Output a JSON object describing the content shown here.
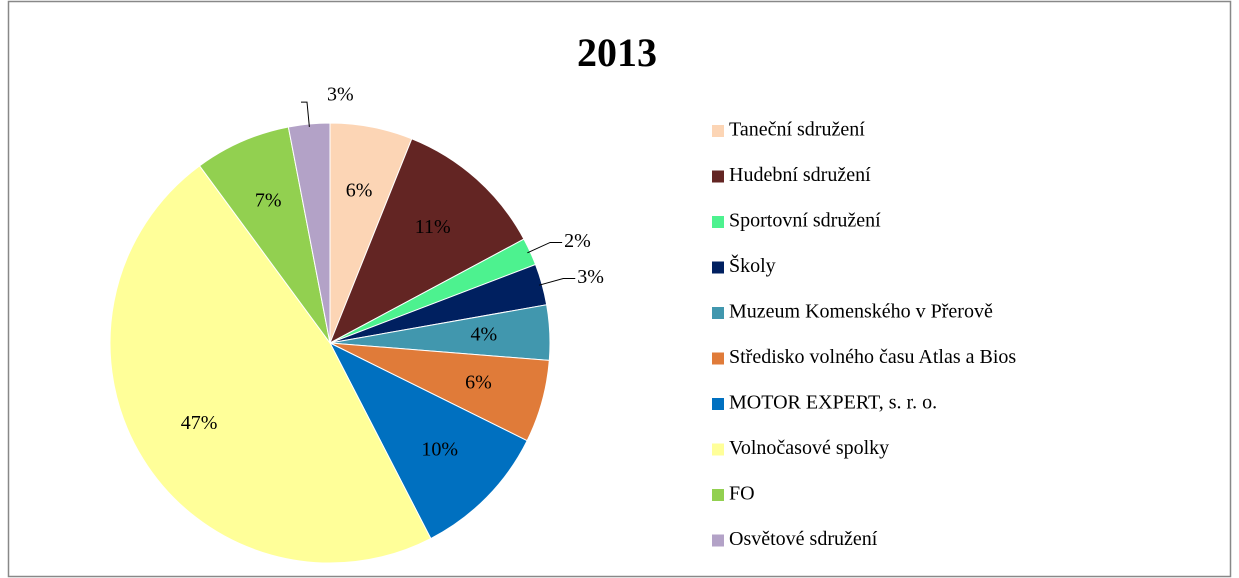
{
  "chart_data": {
    "type": "pie",
    "title": "2013",
    "categories": [
      "Taneční sdružení",
      "Hudební sdružení",
      "Sportovní sdružení",
      "Školy",
      "Muzeum Komenského v Přerově",
      "Středisko volného času Atlas a Bios",
      "MOTOR EXPERT, s. r. o.",
      "Volnočasové spolky",
      "FO",
      "Osvětové sdružení"
    ],
    "values": [
      6,
      11,
      2,
      3,
      4,
      6,
      10,
      47,
      7,
      3
    ],
    "value_labels": [
      "6%",
      "11%",
      "2%",
      "3%",
      "4%",
      "6%",
      "10%",
      "47%",
      "7%",
      "3%"
    ],
    "colors": [
      "#FCD5B5",
      "#632523",
      "#4DF28F",
      "#002060",
      "#4197AE",
      "#E07B39",
      "#0070C0",
      "#FFFF99",
      "#92D050",
      "#B3A2C7"
    ],
    "legend": "right"
  }
}
